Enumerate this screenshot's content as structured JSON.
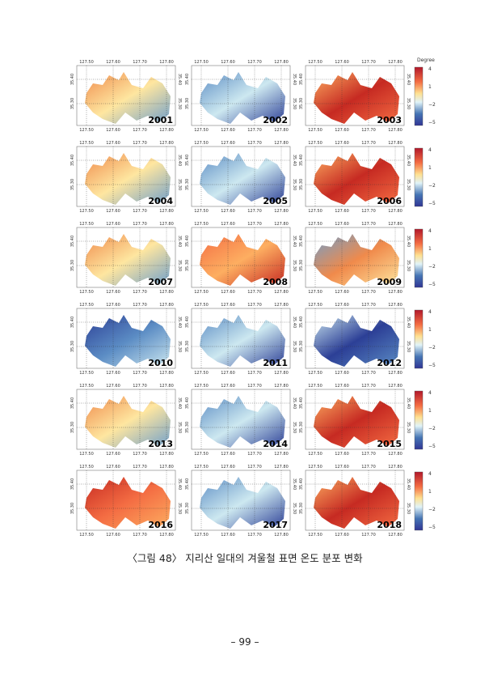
{
  "figure": {
    "panels": [
      {
        "year": "2001"
      },
      {
        "year": "2002"
      },
      {
        "year": "2003"
      },
      {
        "year": "2004"
      },
      {
        "year": "2005"
      },
      {
        "year": "2006"
      },
      {
        "year": "2007"
      },
      {
        "year": "2008"
      },
      {
        "year": "2009"
      },
      {
        "year": "2010"
      },
      {
        "year": "2011"
      },
      {
        "year": "2012"
      },
      {
        "year": "2013"
      },
      {
        "year": "2014"
      },
      {
        "year": "2015"
      },
      {
        "year": "2016"
      },
      {
        "year": "2017"
      },
      {
        "year": "2018"
      }
    ],
    "x_tick_labels": [
      "127.50",
      "127.60",
      "127.70",
      "127.80"
    ],
    "y_tick_labels": [
      "35.40",
      "35.30"
    ],
    "colorbar": {
      "title": "Degree",
      "labels": [
        "4",
        "1",
        "−2",
        "−5"
      ]
    },
    "caption": "〈그림 48〉 지리산 일대의 겨울철 표면 온도 분포 변화"
  },
  "footer": {
    "page_number": "– 99 –"
  }
}
